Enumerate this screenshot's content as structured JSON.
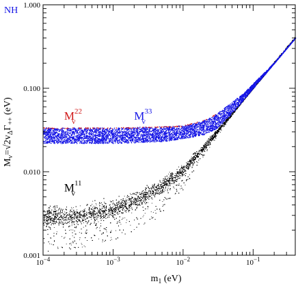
{
  "chart_data": {
    "type": "scatter",
    "title": "",
    "panel_label": "NH",
    "xlabel": "m₁ (eV)",
    "ylabel": "Mν = √2 vΔ Γ++ (eV)",
    "xscale": "log",
    "yscale": "log",
    "xlim": [
      0.0001,
      0.4
    ],
    "ylim": [
      0.001,
      1.0
    ],
    "x_ticks": [
      {
        "value": 0.0001,
        "base": "10",
        "exp": "−4"
      },
      {
        "value": 0.001,
        "base": "10",
        "exp": "−3"
      },
      {
        "value": 0.01,
        "base": "10",
        "exp": "−2"
      },
      {
        "value": 0.1,
        "base": "10",
        "exp": "−1"
      }
    ],
    "y_ticks": [
      {
        "value": 0.001,
        "label": "0.001"
      },
      {
        "value": 0.01,
        "label": "0.010"
      },
      {
        "value": 0.1,
        "label": "0.100"
      },
      {
        "value": 1.0,
        "label": "1.000"
      }
    ],
    "series": [
      {
        "name": "Mν²² / Mν³³",
        "color": "#1515e6",
        "color_secondary": "#d01818",
        "x": [
          0.0001,
          0.001,
          0.005,
          0.01,
          0.02,
          0.03,
          0.05,
          0.08,
          0.1,
          0.2,
          0.4
        ],
        "y_low": [
          0.022,
          0.022,
          0.023,
          0.025,
          0.028,
          0.033,
          0.05,
          0.08,
          0.1,
          0.2,
          0.4
        ],
        "y_high": [
          0.034,
          0.034,
          0.035,
          0.036,
          0.042,
          0.05,
          0.069,
          0.095,
          0.115,
          0.205,
          0.405
        ]
      },
      {
        "name": "Mν¹¹",
        "color": "#000000",
        "x": [
          0.0001,
          0.0003,
          0.001,
          0.002,
          0.005,
          0.01,
          0.02,
          0.05,
          0.1,
          0.2,
          0.4
        ],
        "y_center": [
          0.0029,
          0.003,
          0.0036,
          0.0045,
          0.0068,
          0.0105,
          0.02,
          0.05,
          0.1,
          0.2,
          0.4
        ],
        "y_min": [
          0.0011,
          0.0012,
          0.0015,
          0.002,
          0.003,
          0.006,
          0.016,
          0.048,
          0.1,
          0.2,
          0.4
        ]
      }
    ],
    "annotations": [
      {
        "base": "M",
        "sub": "ν",
        "sup": "22",
        "color": "#d01818",
        "at_x": 0.0002,
        "at_y": 0.042
      },
      {
        "base": "M",
        "sub": "ν",
        "sup": "33",
        "color": "#1515e6",
        "at_x": 0.002,
        "at_y": 0.042
      },
      {
        "base": "M",
        "sub": "ν",
        "sup": "11",
        "color": "#000000",
        "at_x": 0.0002,
        "at_y": 0.0058
      }
    ]
  }
}
